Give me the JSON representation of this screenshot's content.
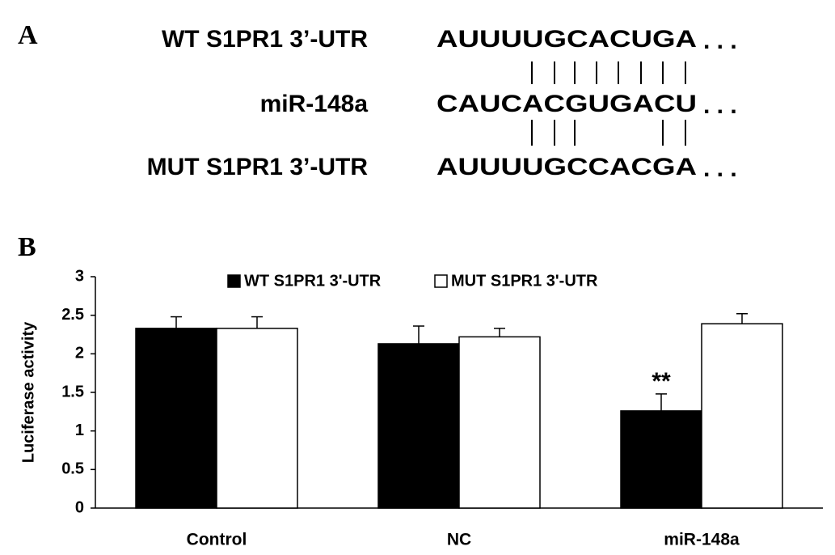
{
  "panel_a": {
    "label": "A",
    "rows": [
      {
        "name": "WT S1PR1 3’-UTR",
        "sequence": "AUUUUGCACUGA",
        "ellipsis": ". . ."
      },
      {
        "name": "miR-148a",
        "sequence": "CAUCACGUGACU",
        "ellipsis": ". . ."
      },
      {
        "name": "MUT S1PR1 3’-UTR",
        "sequence": "AUUUUGCCACGA",
        "ellipsis": ". . ."
      }
    ]
  },
  "chart_data": {
    "type": "bar",
    "panel_label": "B",
    "categories": [
      "Control",
      "NC",
      "miR-148a"
    ],
    "series": [
      {
        "name": "WT S1PR1 3'-UTR",
        "color": "#000000",
        "values": [
          2.33,
          2.13,
          1.26
        ],
        "errors": [
          0.15,
          0.23,
          0.22
        ]
      },
      {
        "name": "MUT S1PR1 3'-UTR",
        "color": "#ffffff",
        "values": [
          2.33,
          2.22,
          2.39
        ],
        "errors": [
          0.15,
          0.11,
          0.13
        ]
      }
    ],
    "annotations": [
      {
        "text": "**",
        "series": 0,
        "category": 2
      }
    ],
    "ylabel": "Luciferase activity",
    "ylim": [
      0,
      3
    ],
    "yticks": [
      0,
      0.5,
      1,
      1.5,
      2,
      2.5,
      3
    ],
    "grid": false,
    "legend": "top"
  }
}
